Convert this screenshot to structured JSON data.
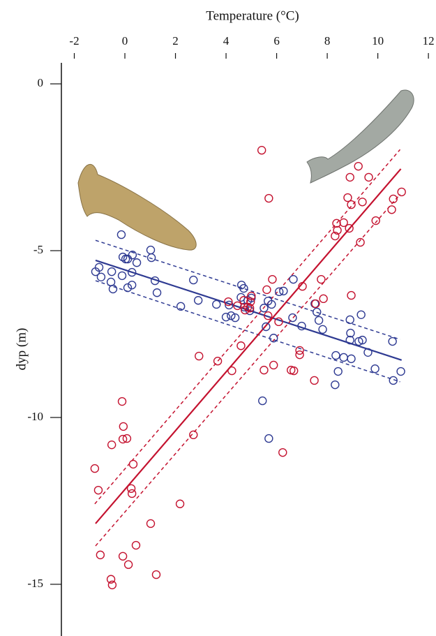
{
  "chart_data": {
    "type": "scatter",
    "x_label": "Temperature (°C)",
    "y_label": "dyp (m)",
    "xlim": [
      -2.51,
      12.3
    ],
    "ylim": [
      -16.55,
      0.63
    ],
    "xticks": [
      -2,
      0,
      2,
      4,
      6,
      8,
      10,
      12
    ],
    "yticks": [
      0,
      -5,
      -10,
      -15
    ],
    "series": [
      {
        "color": "#2e3a92",
        "x": [
          -0.14,
          -0.08,
          0.03,
          0.11,
          0.3,
          0.47,
          1.02,
          1.05,
          -1.16,
          -1.02,
          -0.94,
          -0.52,
          -0.55,
          -0.47,
          -0.11,
          0.28,
          0.11,
          0.28,
          1.19,
          1.27,
          2.21,
          2.71,
          2.9,
          3.62,
          4.0,
          4.12,
          4.2,
          4.36,
          4.61,
          4.7,
          4.59,
          4.72,
          4.86,
          4.94,
          5.0,
          5.5,
          5.66,
          5.8,
          5.58,
          5.88,
          6.1,
          6.27,
          6.66,
          6.63,
          6.99,
          7.51,
          7.59,
          7.67,
          7.82,
          5.44,
          5.69,
          8.34,
          8.43,
          8.31,
          8.65,
          8.95,
          8.9,
          8.92,
          8.9,
          9.34,
          9.25,
          9.39,
          9.61,
          9.89,
          10.58,
          10.61,
          10.91
        ],
        "values": [
          -4.52,
          -5.19,
          -5.25,
          -5.25,
          -5.13,
          -5.36,
          -4.98,
          -5.21,
          -5.63,
          -5.5,
          -5.79,
          -5.63,
          -5.94,
          -6.15,
          -5.75,
          -5.65,
          -6.11,
          -6.03,
          -5.9,
          -6.26,
          -6.67,
          -5.88,
          -6.49,
          -6.61,
          -6.99,
          -6.63,
          -6.95,
          -7.01,
          -6.03,
          -6.13,
          -6.4,
          -6.69,
          -6.49,
          -6.8,
          -6.42,
          -6.72,
          -6.51,
          -6.61,
          -7.28,
          -7.62,
          -6.23,
          -6.21,
          -5.86,
          -7.01,
          -7.26,
          -6.59,
          -6.84,
          -7.09,
          -7.36,
          -9.5,
          -10.63,
          -8.14,
          -8.62,
          -9.02,
          -8.2,
          -8.24,
          -7.07,
          -7.47,
          -7.68,
          -6.92,
          -7.72,
          -7.68,
          -8.05,
          -8.54,
          -7.72,
          -8.89,
          -8.62
        ]
      },
      {
        "color": "#c4122f",
        "x": [
          5.41,
          5.69,
          -1.19,
          -1.05,
          -0.97,
          -0.11,
          -0.52,
          -0.06,
          -0.08,
          0.08,
          0.33,
          0.25,
          0.28,
          0.44,
          -0.08,
          0.14,
          -0.55,
          -0.5,
          1.02,
          1.24,
          2.18,
          2.71,
          2.93,
          3.67,
          4.23,
          4.59,
          4.09,
          4.45,
          4.7,
          4.75,
          4.86,
          4.94,
          5.0,
          4.97,
          5.61,
          5.66,
          5.83,
          5.5,
          5.88,
          6.08,
          6.57,
          6.68,
          6.24,
          6.91,
          6.91,
          7.02,
          7.49,
          7.54,
          7.85,
          7.76,
          8.37,
          8.4,
          8.31,
          8.65,
          8.87,
          8.81,
          8.95,
          8.9,
          9.23,
          9.39,
          9.64,
          9.31,
          9.92,
          8.95,
          10.55,
          10.61,
          10.94
        ],
        "values": [
          -1.99,
          -3.43,
          -11.53,
          -12.18,
          -14.12,
          -9.52,
          -10.82,
          -10.27,
          -10.65,
          -10.63,
          -11.4,
          -12.13,
          -12.28,
          -13.83,
          -14.16,
          -14.41,
          -14.85,
          -15.02,
          -13.18,
          -14.71,
          -12.59,
          -10.52,
          -8.16,
          -8.31,
          -8.6,
          -7.85,
          -6.53,
          -6.65,
          -6.49,
          -6.78,
          -6.69,
          -6.72,
          -6.36,
          -6.53,
          -6.17,
          -6.95,
          -5.86,
          -8.58,
          -8.43,
          -7.13,
          -8.58,
          -8.6,
          -11.05,
          -7.99,
          -8.12,
          -6.07,
          -8.89,
          -6.59,
          -6.44,
          -5.86,
          -4.18,
          -4.39,
          -4.56,
          -4.16,
          -4.33,
          -3.41,
          -3.62,
          -2.8,
          -2.47,
          -3.54,
          -2.8,
          -4.75,
          -4.1,
          -6.34,
          -3.77,
          -3.45,
          -3.24
        ]
      }
    ],
    "fit_lines": [
      {
        "color": "#2e3a92",
        "dashed": false,
        "x": [
          -1.16,
          10.94
        ],
        "values": [
          -5.29,
          -8.28
        ]
      },
      {
        "color": "#2e3a92",
        "dashed": true,
        "x": [
          -1.16,
          10.88
        ],
        "values": [
          -4.69,
          -7.66
        ]
      },
      {
        "color": "#2e3a92",
        "dashed": true,
        "x": [
          -1.16,
          10.88
        ],
        "values": [
          -5.9,
          -8.93
        ]
      },
      {
        "color": "#c4122f",
        "dashed": false,
        "x": [
          -1.16,
          10.91
        ],
        "values": [
          -13.18,
          -2.55
        ]
      },
      {
        "color": "#c4122f",
        "dashed": true,
        "x": [
          -1.19,
          10.88
        ],
        "values": [
          -12.59,
          -1.97
        ]
      },
      {
        "color": "#c4122f",
        "dashed": true,
        "x": [
          -1.16,
          10.88
        ],
        "values": [
          -13.85,
          -3.31
        ]
      }
    ]
  }
}
